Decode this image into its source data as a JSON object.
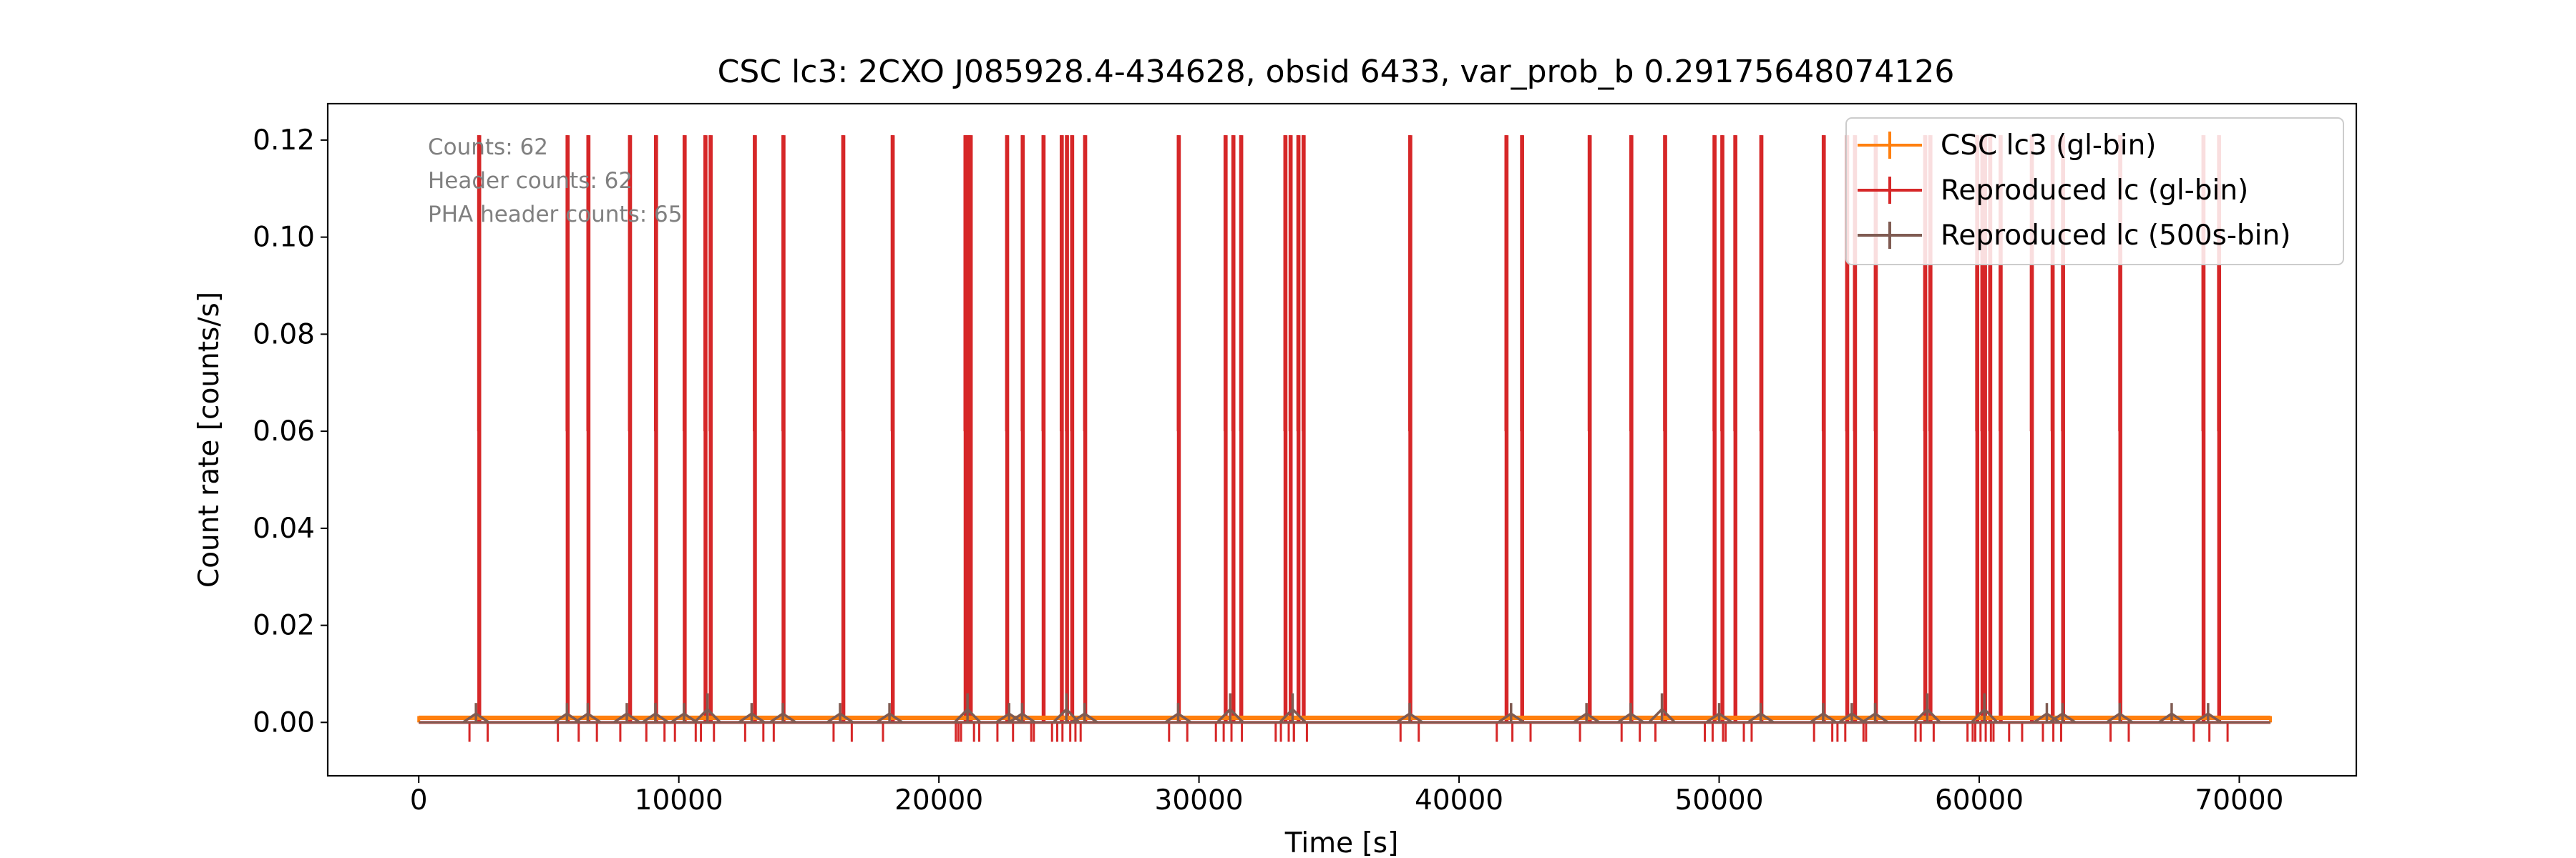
{
  "chart_data": {
    "type": "line",
    "title": "CSC lc3: 2CXO J085928.4-434628, obsid 6433, var_prob_b 0.29175648074126",
    "xlabel": "Time [s]",
    "ylabel": "Count rate [counts/s]",
    "xlim": [
      -3500,
      74500
    ],
    "ylim": [
      -0.011,
      0.1275
    ],
    "xticks": [
      0,
      10000,
      20000,
      30000,
      40000,
      50000,
      60000,
      70000
    ],
    "yticks": [
      0.0,
      0.02,
      0.04,
      0.06,
      0.08,
      0.1,
      0.12
    ],
    "xtick_labels": [
      "0",
      "10000",
      "20000",
      "30000",
      "40000",
      "50000",
      "60000",
      "70000"
    ],
    "ytick_labels": [
      "0.00",
      "0.02",
      "0.04",
      "0.06",
      "0.08",
      "0.10",
      "0.12"
    ],
    "grid": false,
    "legend_position": "top-right",
    "annotations": [
      "Counts: 62",
      "Header counts: 62",
      "PHA header counts: 65"
    ],
    "series": [
      {
        "name": "CSC lc3 (gl-bin)",
        "color": "#ff7f0e",
        "style": "step with error bars",
        "x_range": [
          0,
          71200
        ],
        "value": 0.00087,
        "error": 0.0003
      },
      {
        "name": "Reproduced lc (gl-bin)",
        "color": "#d62728",
        "style": "step with error bars",
        "peak_value": 0.121,
        "spike_times": [
          2300,
          5700,
          6500,
          8100,
          9100,
          10200,
          11000,
          11200,
          12900,
          14000,
          16300,
          18200,
          21000,
          21100,
          21200,
          22600,
          23200,
          24000,
          24700,
          24900,
          25100,
          25600,
          29200,
          31000,
          31300,
          31600,
          33300,
          33500,
          33800,
          34000,
          38100,
          41800,
          42400,
          45000,
          46600,
          47900,
          49800,
          50100,
          50600,
          51600,
          54000,
          54900,
          55200,
          56000,
          57900,
          58100,
          59900,
          60100,
          60200,
          60400,
          60800,
          62000,
          62800,
          63200,
          65400,
          68600,
          69200
        ]
      },
      {
        "name": "Reproduced lc (500s-bin)",
        "color": "#7f5b52",
        "style": "step with error bars",
        "bin_width": 500,
        "bumps": [
          {
            "t": 2200,
            "v": 0.004
          },
          {
            "t": 5700,
            "v": 0.004
          },
          {
            "t": 6500,
            "v": 0.004
          },
          {
            "t": 8000,
            "v": 0.004
          },
          {
            "t": 9100,
            "v": 0.004
          },
          {
            "t": 10200,
            "v": 0.004
          },
          {
            "t": 11100,
            "v": 0.006
          },
          {
            "t": 12800,
            "v": 0.004
          },
          {
            "t": 14000,
            "v": 0.004
          },
          {
            "t": 16200,
            "v": 0.004
          },
          {
            "t": 18100,
            "v": 0.004
          },
          {
            "t": 21100,
            "v": 0.006
          },
          {
            "t": 22700,
            "v": 0.004
          },
          {
            "t": 23200,
            "v": 0.004
          },
          {
            "t": 24900,
            "v": 0.006
          },
          {
            "t": 25600,
            "v": 0.004
          },
          {
            "t": 29200,
            "v": 0.004
          },
          {
            "t": 31200,
            "v": 0.006
          },
          {
            "t": 33600,
            "v": 0.006
          },
          {
            "t": 38100,
            "v": 0.004
          },
          {
            "t": 42000,
            "v": 0.004
          },
          {
            "t": 44900,
            "v": 0.004
          },
          {
            "t": 46600,
            "v": 0.004
          },
          {
            "t": 47800,
            "v": 0.006
          },
          {
            "t": 50000,
            "v": 0.004
          },
          {
            "t": 51600,
            "v": 0.004
          },
          {
            "t": 54000,
            "v": 0.004
          },
          {
            "t": 55100,
            "v": 0.004
          },
          {
            "t": 56000,
            "v": 0.004
          },
          {
            "t": 58000,
            "v": 0.006
          },
          {
            "t": 60200,
            "v": 0.006
          },
          {
            "t": 62600,
            "v": 0.004
          },
          {
            "t": 63200,
            "v": 0.004
          },
          {
            "t": 65400,
            "v": 0.004
          },
          {
            "t": 67400,
            "v": 0.004
          },
          {
            "t": 68800,
            "v": 0.004
          }
        ]
      }
    ]
  }
}
